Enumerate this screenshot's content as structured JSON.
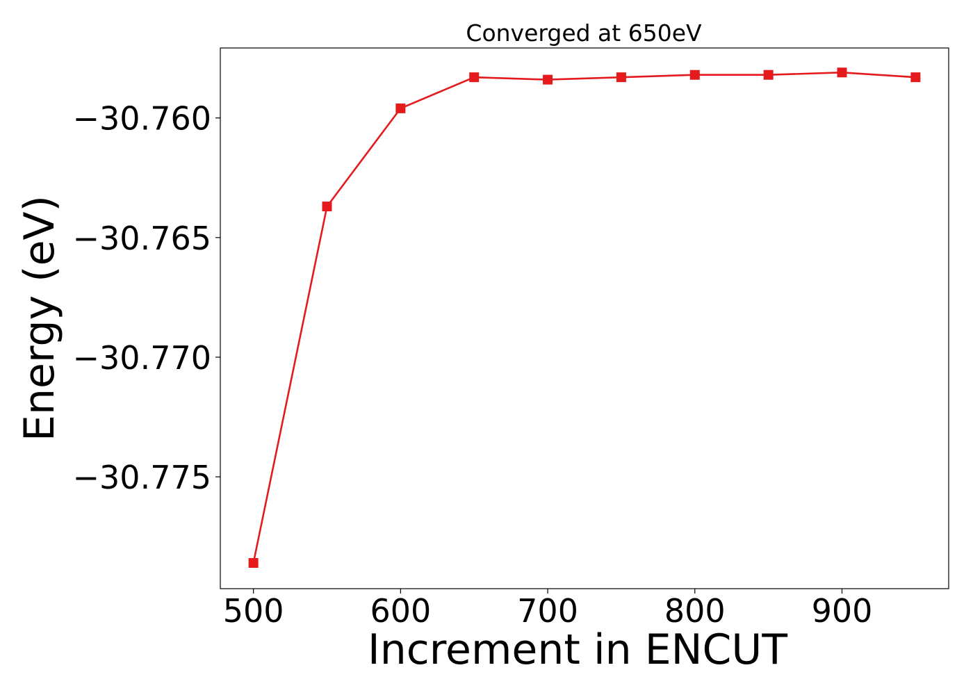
{
  "chart_data": {
    "type": "line",
    "title": "Converged at 650eV",
    "xlabel": "Increment in ENCUT",
    "ylabel": "Energy (eV)",
    "x": [
      500,
      550,
      600,
      650,
      700,
      750,
      800,
      850,
      900,
      950
    ],
    "series": [
      {
        "values": [
          -30.7786,
          -30.7637,
          -30.7596,
          -30.7583,
          -30.7584,
          -30.7583,
          -30.7582,
          -30.7582,
          -30.7581,
          -30.7583
        ],
        "color": "#e41a1c",
        "marker": "square"
      }
    ],
    "xlim": [
      477.5,
      972.5
    ],
    "ylim": [
      -30.779675,
      -30.757075
    ],
    "x_ticks": [
      500,
      600,
      700,
      800,
      900
    ],
    "x_tick_labels": [
      "500",
      "600",
      "700",
      "800",
      "900"
    ],
    "y_ticks": [
      -30.76,
      -30.765,
      -30.77,
      -30.775
    ],
    "y_tick_labels": [
      "−30.760",
      "−30.765",
      "−30.770",
      "−30.775"
    ],
    "grid": false,
    "legend": "none"
  }
}
